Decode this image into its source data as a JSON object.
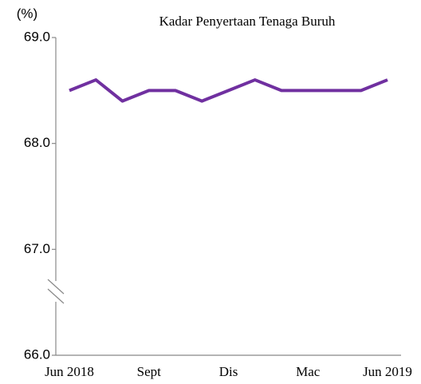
{
  "chart_data": {
    "type": "line",
    "title": "Kadar Penyertaan Tenaga Buruh",
    "y_label": "(%)",
    "categories": [
      "Jun 2018",
      null,
      null,
      "Sept",
      null,
      null,
      "Dis",
      null,
      null,
      "Mac",
      null,
      null,
      "Jun 2019"
    ],
    "series": [
      {
        "name": "Kadar Penyertaan Tenaga Buruh",
        "color": "#7030a0",
        "values": [
          68.5,
          68.6,
          68.4,
          68.5,
          68.5,
          68.4,
          68.5,
          68.6,
          68.5,
          68.5,
          68.5,
          68.5,
          68.6
        ]
      }
    ],
    "ylim": [
      66.0,
      69.0
    ],
    "yticks": [
      {
        "value": 66,
        "label": "66.0"
      },
      {
        "value": 67,
        "label": "67.0"
      },
      {
        "value": 68,
        "label": "68.0"
      },
      {
        "value": 69,
        "label": "69.0"
      }
    ],
    "grid": false
  }
}
